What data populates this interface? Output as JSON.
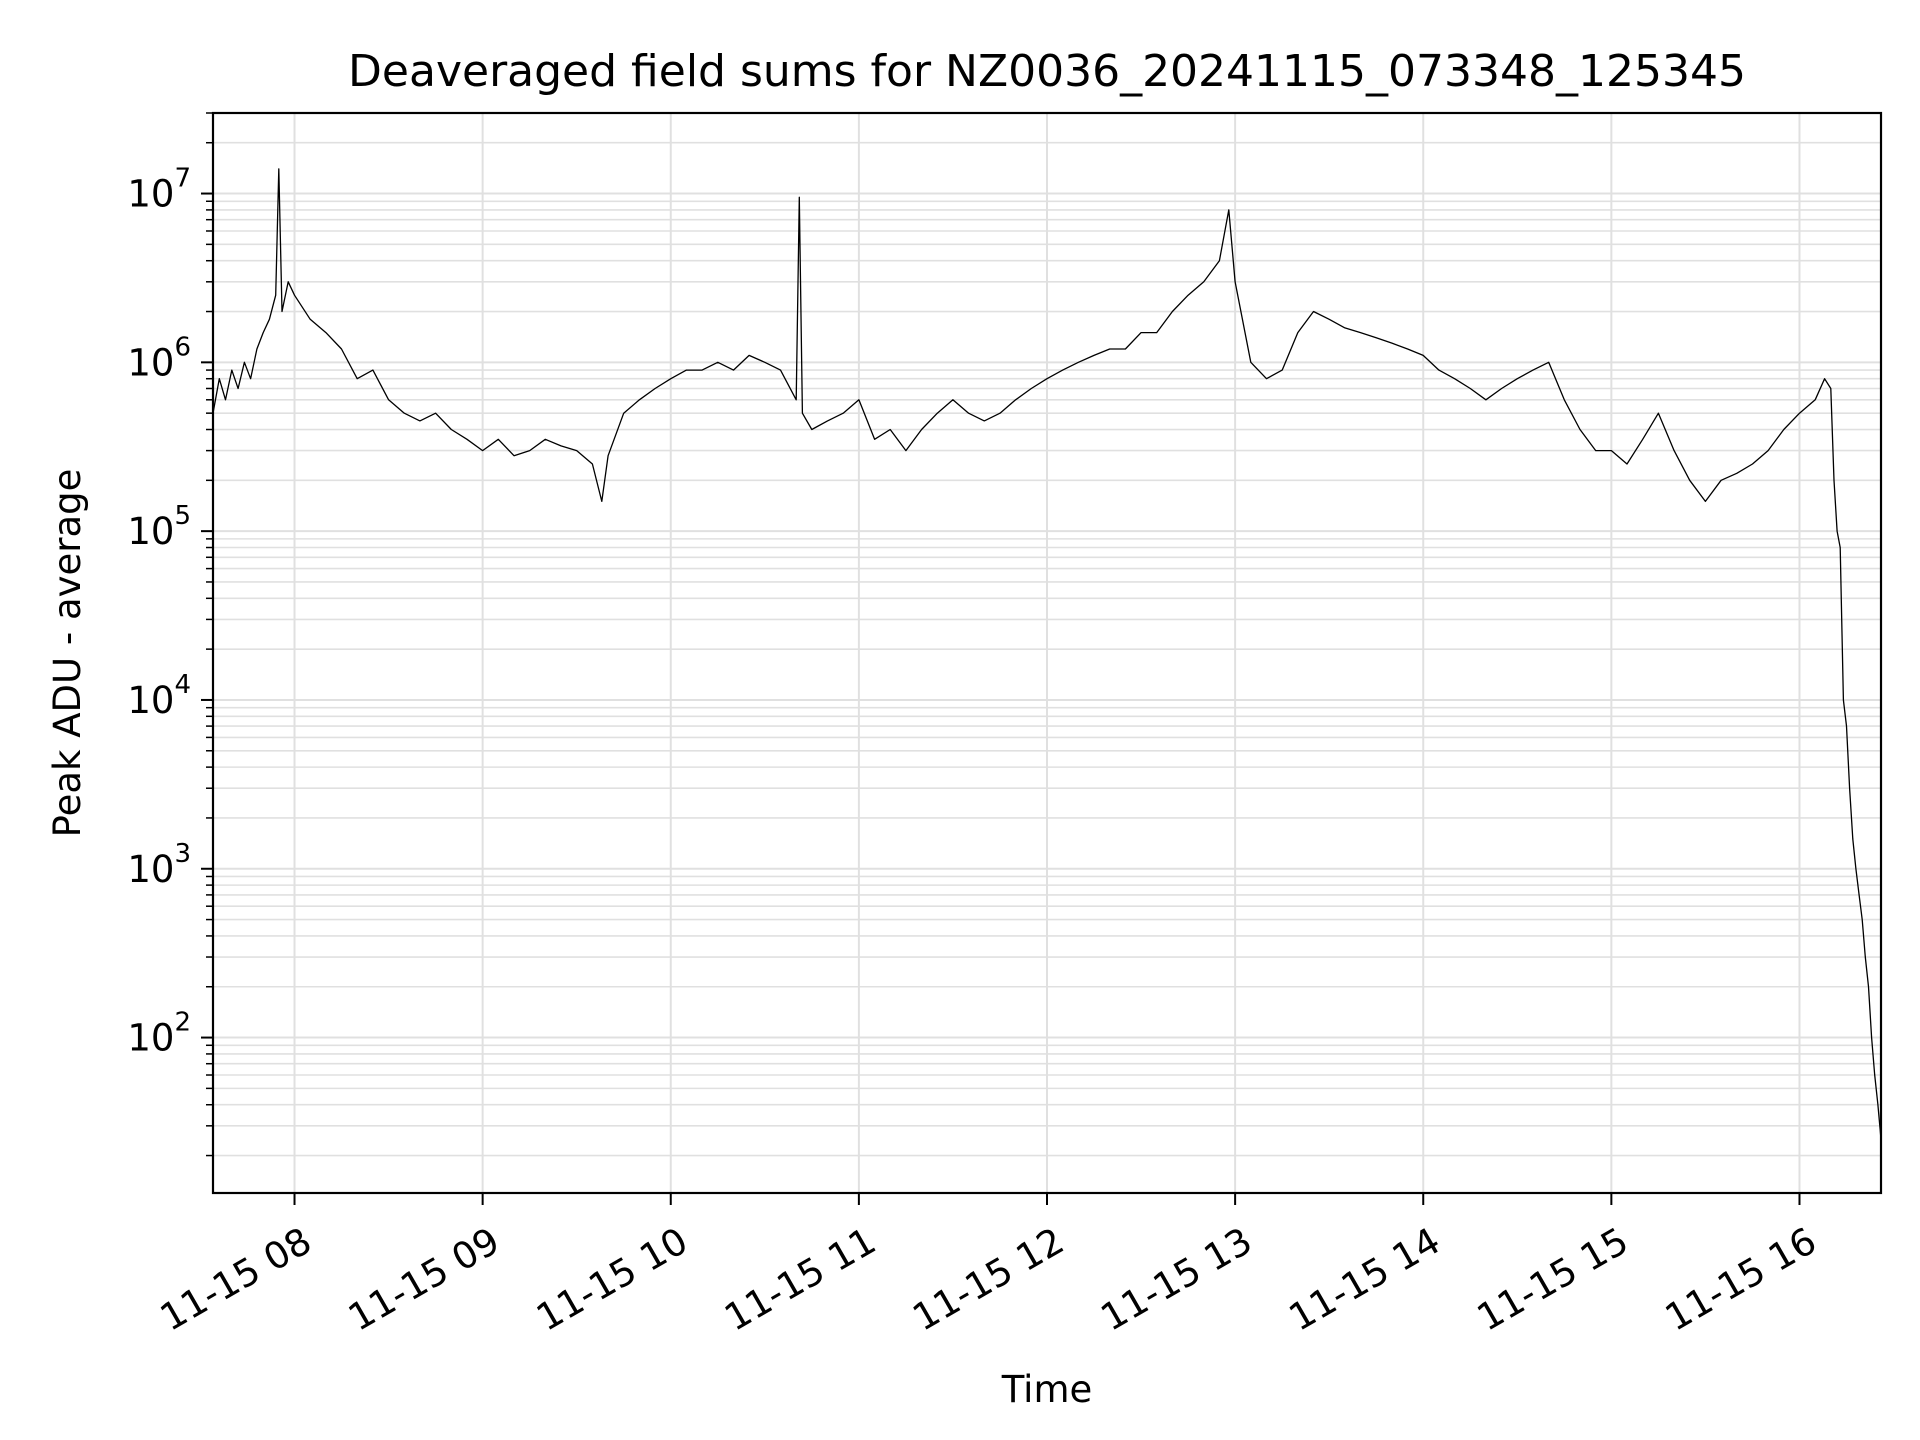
{
  "chart_data": {
    "type": "line",
    "title": "Deaveraged field sums for NZ0036_20241115_073348_125345",
    "xlabel": "Time",
    "ylabel": "Peak ADU - average",
    "yscale": "log",
    "grid": true,
    "x_tick_labels": [
      "11-15 08",
      "11-15 09",
      "11-15 10",
      "11-15 11",
      "11-15 12",
      "11-15 13",
      "11-15 14",
      "11-15 15",
      "11-15 16"
    ],
    "xlim": [
      "2024-11-15 07:34",
      "2024-11-15 16:26"
    ],
    "y_tick_labels": [
      {
        "base": "10",
        "exp": "2"
      },
      {
        "base": "10",
        "exp": "3"
      },
      {
        "base": "10",
        "exp": "4"
      },
      {
        "base": "10",
        "exp": "5"
      },
      {
        "base": "10",
        "exp": "6"
      },
      {
        "base": "10",
        "exp": "7"
      }
    ],
    "ylim": [
      12,
      30000000
    ],
    "series": [
      {
        "color": "#000000",
        "x": [
          "07:34",
          "07:36",
          "07:38",
          "07:40",
          "07:42",
          "07:44",
          "07:46",
          "07:48",
          "07:50",
          "07:52",
          "07:54",
          "07:55",
          "07:56",
          "07:58",
          "08:00",
          "08:05",
          "08:10",
          "08:15",
          "08:20",
          "08:25",
          "08:30",
          "08:35",
          "08:40",
          "08:45",
          "08:50",
          "08:55",
          "09:00",
          "09:05",
          "09:10",
          "09:15",
          "09:20",
          "09:25",
          "09:30",
          "09:35",
          "09:38",
          "09:40",
          "09:45",
          "09:50",
          "09:55",
          "10:00",
          "10:05",
          "10:10",
          "10:15",
          "10:20",
          "10:25",
          "10:30",
          "10:35",
          "10:40",
          "10:41",
          "10:42",
          "10:45",
          "10:50",
          "10:55",
          "11:00",
          "11:05",
          "11:10",
          "11:15",
          "11:20",
          "11:25",
          "11:30",
          "11:35",
          "11:40",
          "11:45",
          "11:50",
          "11:55",
          "12:00",
          "12:05",
          "12:10",
          "12:15",
          "12:20",
          "12:25",
          "12:30",
          "12:35",
          "12:40",
          "12:45",
          "12:50",
          "12:55",
          "12:58",
          "13:00",
          "13:05",
          "13:10",
          "13:15",
          "13:20",
          "13:25",
          "13:30",
          "13:35",
          "13:40",
          "13:45",
          "13:50",
          "13:55",
          "14:00",
          "14:05",
          "14:10",
          "14:15",
          "14:20",
          "14:25",
          "14:30",
          "14:35",
          "14:40",
          "14:45",
          "14:50",
          "14:55",
          "15:00",
          "15:05",
          "15:10",
          "15:15",
          "15:20",
          "15:25",
          "15:30",
          "15:35",
          "15:40",
          "15:45",
          "15:50",
          "15:55",
          "16:00",
          "16:05",
          "16:08",
          "16:10",
          "16:11",
          "16:12",
          "16:13",
          "16:14",
          "16:15",
          "16:16",
          "16:17",
          "16:18",
          "16:19",
          "16:20",
          "16:21",
          "16:22",
          "16:23",
          "16:24",
          "16:25",
          "16:26"
        ],
        "y": [
          500000,
          800000,
          600000,
          900000,
          700000,
          1000000,
          800000,
          1200000,
          1500000,
          1800000,
          2500000,
          14000000,
          2000000,
          3000000,
          2500000,
          1800000,
          1500000,
          1200000,
          800000,
          900000,
          600000,
          500000,
          450000,
          500000,
          400000,
          350000,
          300000,
          350000,
          280000,
          300000,
          350000,
          320000,
          300000,
          250000,
          150000,
          280000,
          500000,
          600000,
          700000,
          800000,
          900000,
          900000,
          1000000,
          900000,
          1100000,
          1000000,
          900000,
          600000,
          9500000,
          500000,
          400000,
          450000,
          500000,
          600000,
          350000,
          400000,
          300000,
          400000,
          500000,
          600000,
          500000,
          450000,
          500000,
          600000,
          700000,
          800000,
          900000,
          1000000,
          1100000,
          1200000,
          1200000,
          1500000,
          1500000,
          2000000,
          2500000,
          3000000,
          4000000,
          8000000,
          3000000,
          1000000,
          800000,
          900000,
          1500000,
          2000000,
          1800000,
          1600000,
          1500000,
          1400000,
          1300000,
          1200000,
          1100000,
          900000,
          800000,
          700000,
          600000,
          700000,
          800000,
          900000,
          1000000,
          600000,
          400000,
          300000,
          300000,
          250000,
          350000,
          500000,
          300000,
          200000,
          150000,
          200000,
          220000,
          250000,
          300000,
          400000,
          500000,
          600000,
          800000,
          700000,
          200000,
          100000,
          80000,
          10000,
          7000,
          3000,
          1500,
          1000,
          700,
          500,
          300,
          200,
          100,
          60,
          40,
          25
        ]
      }
    ]
  }
}
